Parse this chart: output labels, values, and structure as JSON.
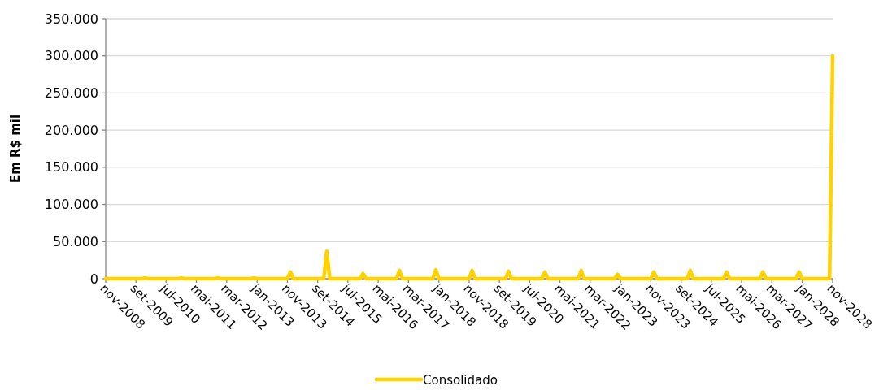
{
  "chart_data": {
    "type": "line",
    "ylabel": "Em R$ mil",
    "x": [
      "2008-11",
      "2009-11",
      "2009-12",
      "2010-01",
      "2010-11",
      "2010-12",
      "2011-01",
      "2011-11",
      "2011-12",
      "2012-01",
      "2012-11",
      "2012-12",
      "2013-01",
      "2013-11",
      "2013-12",
      "2014-01",
      "2014-11",
      "2014-12",
      "2015-01",
      "2015-11",
      "2015-12",
      "2016-01",
      "2016-11",
      "2016-12",
      "2017-01",
      "2017-11",
      "2017-12",
      "2018-01",
      "2018-11",
      "2018-12",
      "2019-01",
      "2019-11",
      "2019-12",
      "2020-01",
      "2020-11",
      "2020-12",
      "2021-01",
      "2021-11",
      "2021-12",
      "2022-01",
      "2022-11",
      "2022-12",
      "2023-01",
      "2023-11",
      "2023-12",
      "2024-01",
      "2024-11",
      "2024-12",
      "2025-01",
      "2025-11",
      "2025-12",
      "2026-01",
      "2026-11",
      "2026-12",
      "2027-01",
      "2027-11",
      "2027-12",
      "2028-01",
      "2028-10",
      "2028-11"
    ],
    "series": [
      {
        "name": "Consolidado",
        "color": "#ffd200",
        "values": [
          0,
          0,
          1000,
          0,
          0,
          1000,
          0,
          0,
          1000,
          0,
          0,
          1000,
          0,
          0,
          9000,
          0,
          0,
          37000,
          0,
          0,
          7000,
          0,
          0,
          11000,
          0,
          0,
          12000,
          0,
          0,
          11000,
          0,
          0,
          10000,
          0,
          0,
          9000,
          0,
          0,
          11000,
          0,
          0,
          6000,
          0,
          0,
          9000,
          0,
          0,
          11000,
          0,
          0,
          9000,
          0,
          0,
          9000,
          0,
          0,
          9000,
          0,
          0,
          300000
        ]
      }
    ],
    "xlim": [
      "2008-11",
      "2028-11"
    ],
    "xticks": [
      {
        "value": "2008-11",
        "label": "nov-2008"
      },
      {
        "value": "2009-09",
        "label": "set-2009"
      },
      {
        "value": "2010-07",
        "label": "jul-2010"
      },
      {
        "value": "2011-05",
        "label": "mai-2011"
      },
      {
        "value": "2012-03",
        "label": "mar-2012"
      },
      {
        "value": "2013-01",
        "label": "jan-2013"
      },
      {
        "value": "2013-11",
        "label": "nov-2013"
      },
      {
        "value": "2014-09",
        "label": "set-2014"
      },
      {
        "value": "2015-07",
        "label": "jul-2015"
      },
      {
        "value": "2016-05",
        "label": "mai-2016"
      },
      {
        "value": "2017-03",
        "label": "mar-2017"
      },
      {
        "value": "2018-01",
        "label": "jan-2018"
      },
      {
        "value": "2018-11",
        "label": "nov-2018"
      },
      {
        "value": "2019-09",
        "label": "set-2019"
      },
      {
        "value": "2020-07",
        "label": "jul-2020"
      },
      {
        "value": "2021-05",
        "label": "mai-2021"
      },
      {
        "value": "2022-03",
        "label": "mar-2022"
      },
      {
        "value": "2023-01",
        "label": "jan-2023"
      },
      {
        "value": "2023-11",
        "label": "nov-2023"
      },
      {
        "value": "2024-09",
        "label": "set-2024"
      },
      {
        "value": "2025-07",
        "label": "jul-2025"
      },
      {
        "value": "2026-05",
        "label": "mai-2026"
      },
      {
        "value": "2027-03",
        "label": "mar-2027"
      },
      {
        "value": "2028-01",
        "label": "jan-2028"
      },
      {
        "value": "2028-11",
        "label": "nov-2028"
      }
    ],
    "ylim": [
      0,
      350000
    ],
    "yticks": [
      0,
      {
        "value": 50000,
        "label": "50.000"
      },
      {
        "value": 100000,
        "label": "100.000"
      },
      {
        "value": 150000,
        "label": "150.000"
      },
      {
        "value": 200000,
        "label": "200.000"
      },
      {
        "value": 250000,
        "label": "250.000"
      },
      {
        "value": 300000,
        "label": "300.000"
      },
      {
        "value": 350000,
        "label": "350.000"
      }
    ],
    "grid": "y",
    "legend": "bottom",
    "marker": "none",
    "line_style": "solid"
  }
}
